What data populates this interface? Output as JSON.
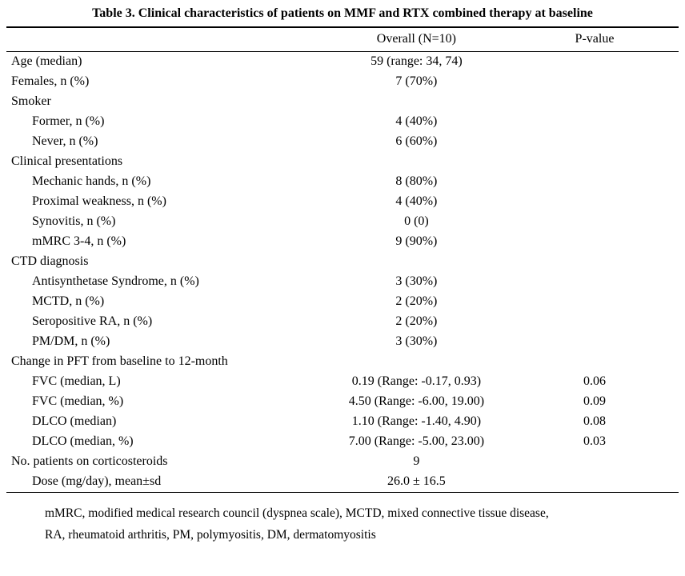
{
  "title": "Table 3. Clinical characteristics of patients on MMF and RTX combined therapy at baseline",
  "header": {
    "label_col": "",
    "overall_col": "Overall (N=10)",
    "pvalue_col": "P-value"
  },
  "rows": [
    {
      "label": "Age (median)",
      "overall": "59 (range: 34, 74)",
      "pvalue": "",
      "indent": 0
    },
    {
      "label": "Females, n (%)",
      "overall": "7 (70%)",
      "pvalue": "",
      "indent": 0
    },
    {
      "label": "Smoker",
      "overall": "",
      "pvalue": "",
      "indent": 0
    },
    {
      "label": "Former, n (%)",
      "overall": "4 (40%)",
      "pvalue": "",
      "indent": 1
    },
    {
      "label": "Never, n (%)",
      "overall": "6 (60%)",
      "pvalue": "",
      "indent": 1
    },
    {
      "label": "Clinical presentations",
      "overall": "",
      "pvalue": "",
      "indent": 0
    },
    {
      "label": "Mechanic hands, n (%)",
      "overall": "8 (80%)",
      "pvalue": "",
      "indent": 1
    },
    {
      "label": "Proximal weakness, n (%)",
      "overall": "4 (40%)",
      "pvalue": "",
      "indent": 1
    },
    {
      "label": "Synovitis, n (%)",
      "overall": "0 (0)",
      "pvalue": "",
      "indent": 1
    },
    {
      "label": "mMRC 3-4, n (%)",
      "overall": "9 (90%)",
      "pvalue": "",
      "indent": 1
    },
    {
      "label": "CTD diagnosis",
      "overall": "",
      "pvalue": "",
      "indent": 0
    },
    {
      "label": "Antisynthetase Syndrome, n (%)",
      "overall": "3 (30%)",
      "pvalue": "",
      "indent": 1
    },
    {
      "label": "MCTD, n (%)",
      "overall": "2 (20%)",
      "pvalue": "",
      "indent": 1
    },
    {
      "label": "Seropositive RA, n (%)",
      "overall": "2 (20%)",
      "pvalue": "",
      "indent": 1
    },
    {
      "label": "PM/DM, n (%)",
      "overall": "3 (30%)",
      "pvalue": "",
      "indent": 1
    },
    {
      "label": "Change in PFT from baseline to 12-month",
      "overall": "",
      "pvalue": "",
      "indent": 0
    },
    {
      "label": "FVC (median, L)",
      "overall": "0.19 (Range: -0.17, 0.93)",
      "pvalue": "0.06",
      "indent": 1
    },
    {
      "label": "FVC (median, %)",
      "overall": "4.50 (Range: -6.00, 19.00)",
      "pvalue": "0.09",
      "indent": 1
    },
    {
      "label": "DLCO (median)",
      "overall": "1.10 (Range: -1.40, 4.90)",
      "pvalue": "0.08",
      "indent": 1
    },
    {
      "label": "DLCO (median, %)",
      "overall": "7.00 (Range: -5.00, 23.00)",
      "pvalue": "0.03",
      "indent": 1
    },
    {
      "label": "No. patients on corticosteroids",
      "overall": "9",
      "pvalue": "",
      "indent": 0
    },
    {
      "label": "Dose (mg/day), mean±sd",
      "overall": "26.0 ± 16.5",
      "pvalue": "",
      "indent": 1
    }
  ],
  "footnote": {
    "line1": "mMRC, modified medical research council (dyspnea scale), MCTD, mixed connective tissue disease,",
    "line2": "RA, rheumatoid arthritis, PM, polymyositis, DM, dermatomyositis"
  }
}
